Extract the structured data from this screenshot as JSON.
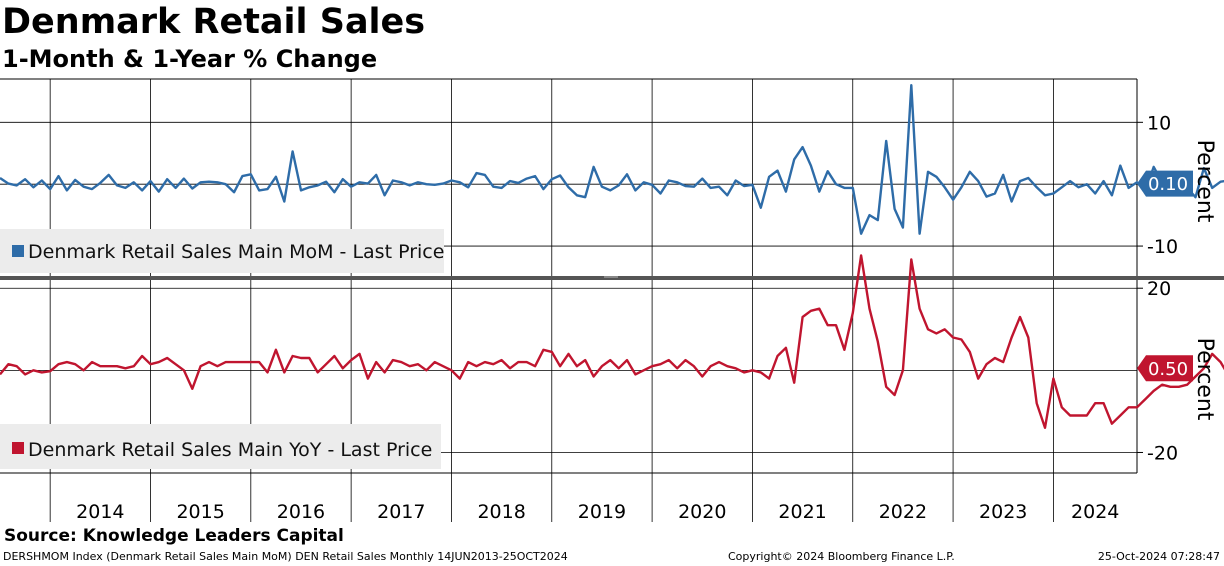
{
  "header": {
    "title": "Denmark Retail Sales",
    "subtitle": "1-Month & 1-Year % Change"
  },
  "footer": {
    "source": "Source: Knowledge Leaders Capital",
    "index_note": "DERSHMOM Index (Denmark Retail Sales Main MoM) DEN Retail Sales  Monthly 14JUN2013-25OCT2024",
    "copyright": "Copyright© 2024 Bloomberg Finance L.P.",
    "timestamp": "25-Oct-2024 07:28:47"
  },
  "colors": {
    "mom": "#2e6ca8",
    "yoy": "#c0152f"
  },
  "chart_data": [
    {
      "type": "line",
      "panel": "top",
      "series": [
        {
          "name": "Denmark Retail Sales Main MoM - Last Price",
          "last_value": 0.1,
          "last_label": "0.10",
          "x_start": "2013-07",
          "values": [
            1.0,
            0.1,
            -0.2,
            0.8,
            -0.5,
            0.6,
            -0.8,
            1.3,
            -1.0,
            0.7,
            -0.4,
            -0.8,
            0.2,
            1.5,
            -0.2,
            -0.6,
            0.3,
            -1.0,
            0.5,
            -1.2,
            0.8,
            -0.6,
            0.9,
            -0.7,
            0.3,
            0.4,
            0.3,
            0.0,
            -1.3,
            1.3,
            1.6,
            -1.0,
            -0.8,
            1.2,
            -2.8,
            5.3,
            -1.0,
            -0.5,
            -0.2,
            0.4,
            -1.3,
            0.8,
            -0.4,
            0.3,
            0.1,
            1.5,
            -1.8,
            0.6,
            0.3,
            -0.2,
            0.3,
            0.0,
            -0.1,
            0.1,
            0.6,
            0.3,
            -0.5,
            1.8,
            1.5,
            -0.4,
            -0.6,
            0.5,
            0.2,
            0.9,
            1.3,
            -0.8,
            0.8,
            1.4,
            -0.5,
            -1.8,
            -2.1,
            2.8,
            -0.4,
            -1.0,
            -0.2,
            1.6,
            -1.0,
            0.3,
            -0.1,
            -1.5,
            0.6,
            0.3,
            -0.3,
            -0.4,
            0.9,
            -0.6,
            -0.4,
            -1.8,
            0.6,
            -0.3,
            -0.1,
            -3.8,
            1.2,
            2.2,
            -1.2,
            4.0,
            6.0,
            3.0,
            -1.2,
            2.1,
            0.0,
            -0.6,
            -0.6,
            -8.0,
            -5.0,
            -5.8,
            7.0,
            -4.0,
            -7.0,
            16.0,
            -8.0,
            2.0,
            1.2,
            -0.5,
            -2.5,
            -0.5,
            2.0,
            0.5,
            -2.0,
            -1.5,
            1.5,
            -2.8,
            0.5,
            1.0,
            -0.5,
            -1.8,
            -1.5,
            -0.5,
            0.5,
            -0.5,
            0.0,
            -1.5,
            0.5,
            -1.8,
            3.0,
            -0.6,
            0.3,
            -1.1,
            2.8,
            0.3,
            1.8,
            0.3,
            -0.6,
            -2.1,
            2.6,
            -0.6,
            0.4,
            0.6,
            -0.6,
            -0.7,
            1.9,
            -0.8,
            0.1,
            0.5,
            -0.4,
            1.3,
            1.0,
            0.4,
            0.0,
            0.3,
            0.1,
            0.1
          ]
        }
      ],
      "yticks": [
        "10",
        "-10"
      ],
      "ylim": [
        -15,
        17
      ],
      "ylabel": "Percent"
    },
    {
      "type": "line",
      "panel": "bottom",
      "series": [
        {
          "name": "Denmark Retail Sales Main YoY - Last Price",
          "last_value": 0.5,
          "last_label": "0.50",
          "x_start": "2013-07",
          "values": [
            -1.0,
            1.5,
            1.0,
            -1.0,
            0.0,
            -0.5,
            -0.2,
            1.5,
            2.0,
            1.5,
            0.0,
            2.0,
            1.0,
            1.0,
            1.0,
            0.5,
            1.0,
            3.5,
            1.5,
            2.0,
            3.0,
            1.5,
            0.0,
            -4.5,
            1.0,
            2.0,
            1.0,
            2.0,
            2.0,
            2.0,
            2.0,
            2.0,
            -0.5,
            5.0,
            -0.5,
            3.5,
            3.0,
            3.0,
            -0.5,
            1.5,
            3.5,
            0.5,
            2.5,
            4.0,
            -2.0,
            2.0,
            -0.5,
            2.5,
            2.0,
            1.0,
            1.5,
            0.0,
            2.0,
            1.0,
            0.0,
            -2.0,
            2.0,
            1.0,
            2.0,
            1.5,
            2.5,
            0.5,
            2.0,
            2.0,
            1.0,
            5.0,
            4.5,
            1.0,
            4.0,
            1.0,
            2.5,
            -1.5,
            1.0,
            2.5,
            0.5,
            2.5,
            -1.0,
            0.0,
            1.0,
            1.5,
            2.5,
            0.5,
            2.5,
            1.0,
            -1.5,
            1.0,
            2.0,
            1.0,
            0.5,
            -0.5,
            0.0,
            -0.5,
            -2.0,
            3.5,
            5.5,
            -3.0,
            13.0,
            14.5,
            15.0,
            11.0,
            11.0,
            5.0,
            14.0,
            28.0,
            15.0,
            7.0,
            -4.0,
            -6.0,
            0.0,
            27.0,
            15.0,
            10.0,
            9.0,
            10.0,
            8.0,
            7.5,
            4.5,
            -2.0,
            1.5,
            3.0,
            2.0,
            8.0,
            13.0,
            8.0,
            -8.0,
            -14.0,
            -2.0,
            -9.0,
            -11.0,
            -11.0,
            -11.0,
            -8.0,
            -8.0,
            -13.0,
            -11.0,
            -9.0,
            -9.0,
            -7.0,
            -5.0,
            -3.5,
            -4.0,
            -4.0,
            -3.5,
            -1.5,
            0.5,
            4.0,
            2.0,
            -1.5,
            0.5,
            1.5,
            2.0,
            2.5,
            3.0,
            4.0,
            4.0,
            1.0,
            7.0,
            5.0,
            2.5,
            4.0,
            1.0,
            3.5,
            1.0,
            5.0,
            4.5,
            0.5
          ]
        }
      ],
      "yticks": [
        "20",
        "-20"
      ],
      "ylim": [
        -25,
        22
      ],
      "ylabel": "Percent"
    }
  ],
  "x_axis": {
    "labels": [
      "2014",
      "2015",
      "2016",
      "2017",
      "2018",
      "2019",
      "2020",
      "2021",
      "2022",
      "2023",
      "2024"
    ],
    "range": [
      "2013-07",
      "2024-11"
    ]
  }
}
